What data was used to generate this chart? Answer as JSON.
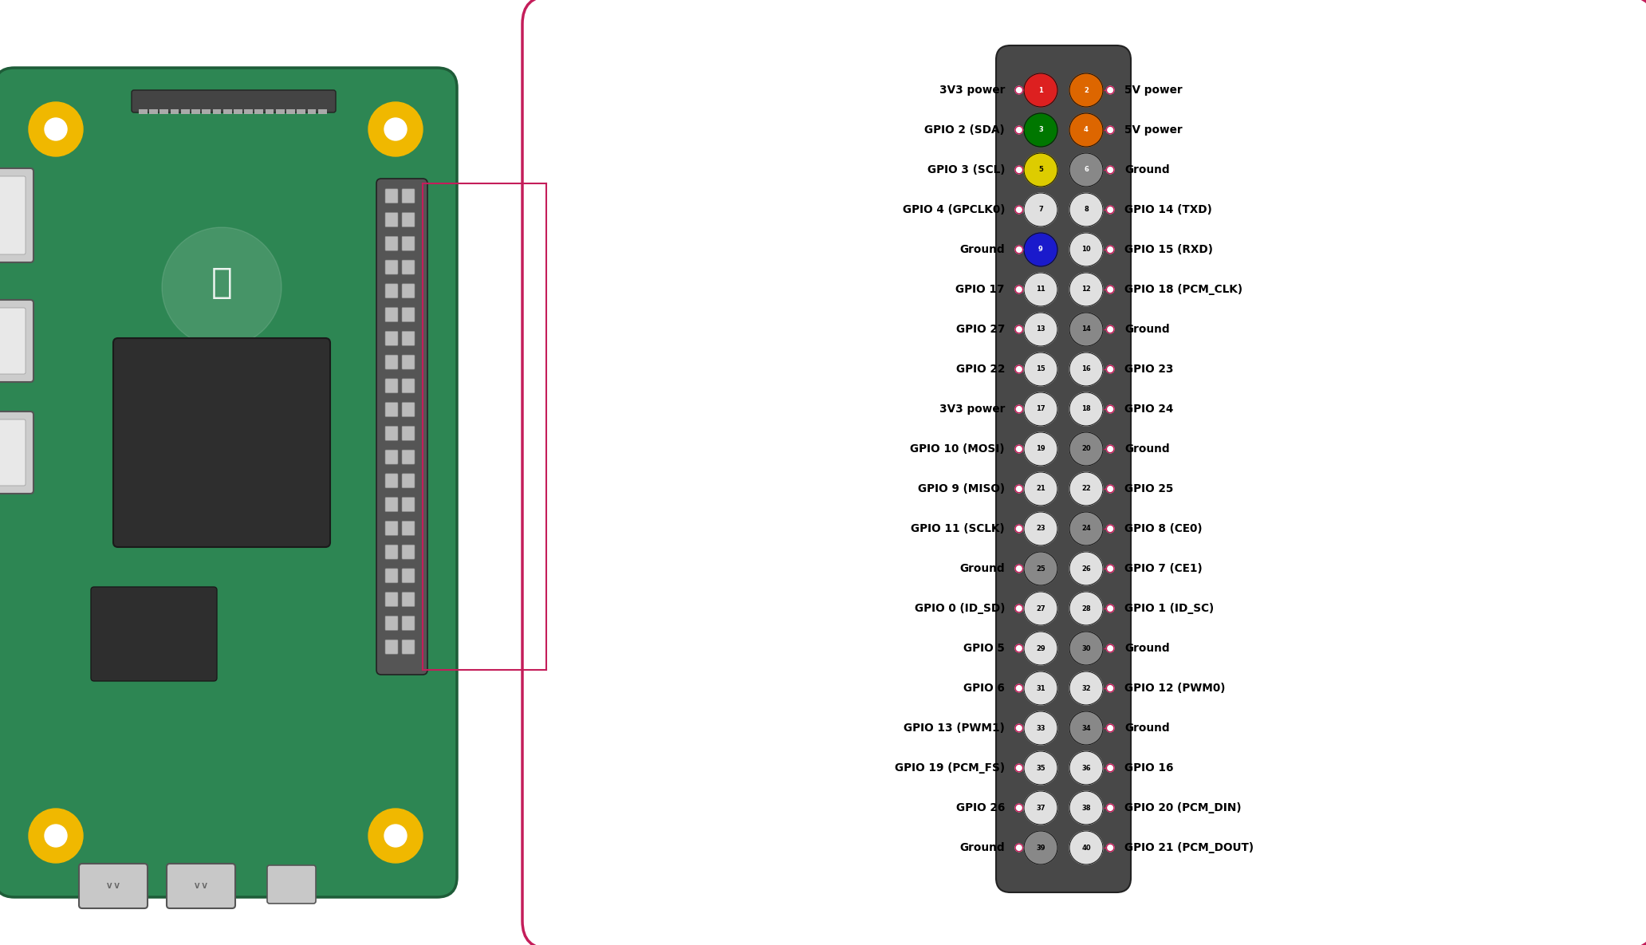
{
  "bg_color": "#ffffff",
  "board_color": "#2d8653",
  "board_edge_color": "#1e5c38",
  "box_border_color": "#c41d5a",
  "box_bg_color": "#ffffff",
  "left_labels": [
    "3V3 power",
    "GPIO 2 (SDA)",
    "GPIO 3 (SCL)",
    "GPIO 4 (GPCLK0)",
    "Ground",
    "GPIO 17",
    "GPIO 27",
    "GPIO 22",
    "3V3 power",
    "GPIO 10 (MOSI)",
    "GPIO 9 (MISO)",
    "GPIO 11 (SCLK)",
    "Ground",
    "GPIO 0 (ID_SD)",
    "GPIO 5",
    "GPIO 6",
    "GPIO 13 (PWM1)",
    "GPIO 19 (PCM_FS)",
    "GPIO 26",
    "Ground"
  ],
  "right_labels": [
    "5V power",
    "5V power",
    "Ground",
    "GPIO 14 (TXD)",
    "GPIO 15 (RXD)",
    "GPIO 18 (PCM_CLK)",
    "Ground",
    "GPIO 23",
    "GPIO 24",
    "Ground",
    "GPIO 25",
    "GPIO 8 (CE0)",
    "GPIO 7 (CE1)",
    "GPIO 1 (ID_SC)",
    "Ground",
    "GPIO 12 (PWM0)",
    "Ground",
    "GPIO 16",
    "GPIO 20 (PCM_DIN)",
    "GPIO 21 (PCM_DOUT)"
  ],
  "left_pin_numbers": [
    1,
    3,
    5,
    7,
    9,
    11,
    13,
    15,
    17,
    19,
    21,
    23,
    25,
    27,
    29,
    31,
    33,
    35,
    37,
    39
  ],
  "right_pin_numbers": [
    2,
    4,
    6,
    8,
    10,
    12,
    14,
    16,
    18,
    20,
    22,
    24,
    26,
    28,
    30,
    32,
    34,
    36,
    38,
    40
  ],
  "pin_colors": {
    "1": "#dd2020",
    "2": "#dd6600",
    "3": "#007700",
    "4": "#dd6600",
    "5": "#ddcc00",
    "6": "#888888",
    "7": "#e0e0e0",
    "8": "#e0e0e0",
    "9": "#1a1acc",
    "10": "#e0e0e0",
    "11": "#e0e0e0",
    "12": "#e0e0e0",
    "13": "#e0e0e0",
    "14": "#888888",
    "15": "#e0e0e0",
    "16": "#e0e0e0",
    "17": "#e0e0e0",
    "18": "#e0e0e0",
    "19": "#e0e0e0",
    "20": "#888888",
    "21": "#e0e0e0",
    "22": "#e0e0e0",
    "23": "#e0e0e0",
    "24": "#888888",
    "25": "#888888",
    "26": "#e0e0e0",
    "27": "#e0e0e0",
    "28": "#e0e0e0",
    "29": "#e0e0e0",
    "30": "#888888",
    "31": "#e0e0e0",
    "32": "#e0e0e0",
    "33": "#e0e0e0",
    "34": "#888888",
    "35": "#e0e0e0",
    "36": "#e0e0e0",
    "37": "#e0e0e0",
    "38": "#e0e0e0",
    "39": "#888888",
    "40": "#e0e0e0"
  },
  "pin_text_colors": {
    "1": "#ffffff",
    "2": "#ffffff",
    "3": "#ffffff",
    "4": "#ffffff",
    "5": "#000000",
    "6": "#ffffff",
    "7": "#000000",
    "8": "#000000",
    "9": "#ffffff",
    "10": "#000000",
    "11": "#000000",
    "12": "#000000",
    "13": "#000000",
    "14": "#000000",
    "15": "#000000",
    "16": "#000000",
    "17": "#000000",
    "18": "#000000",
    "19": "#000000",
    "20": "#000000",
    "21": "#000000",
    "22": "#000000",
    "23": "#000000",
    "24": "#000000",
    "25": "#000000",
    "26": "#000000",
    "27": "#000000",
    "28": "#000000",
    "29": "#000000",
    "30": "#000000",
    "31": "#000000",
    "32": "#000000",
    "33": "#000000",
    "34": "#000000",
    "35": "#000000",
    "36": "#000000",
    "37": "#000000",
    "38": "#000000",
    "39": "#000000",
    "40": "#000000"
  }
}
